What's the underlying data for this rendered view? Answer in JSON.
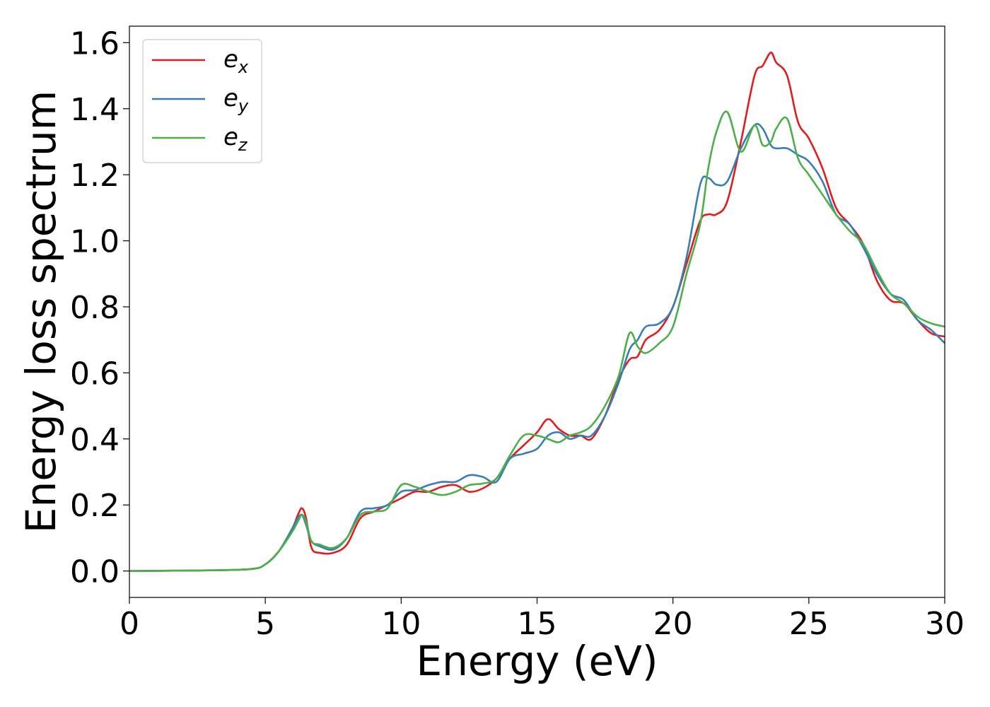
{
  "chart_data": {
    "type": "line",
    "xlabel": "Energy (eV)",
    "ylabel": "Energy loss spectrum",
    "xlim": [
      0,
      30
    ],
    "ylim": [
      -0.08,
      1.65
    ],
    "x_ticks": [
      "0",
      "5",
      "10",
      "15",
      "20",
      "25",
      "30"
    ],
    "y_ticks": [
      "0.0",
      "0.2",
      "0.4",
      "0.6",
      "0.8",
      "1.0",
      "1.2",
      "1.4",
      "1.6"
    ],
    "grid": false,
    "legend_position": "top-left",
    "series": [
      {
        "name": "e",
        "name_subscript": "x",
        "color": "#e41a1c",
        "x": [
          0,
          3,
          4.5,
          5,
          5.5,
          6,
          6.2,
          6.35,
          6.5,
          6.7,
          7,
          7.5,
          8,
          8.5,
          9,
          9.5,
          10,
          10.5,
          11,
          11.5,
          12,
          12.5,
          13,
          13.5,
          14,
          14.5,
          15,
          15.4,
          15.8,
          16.2,
          16.6,
          17,
          17.5,
          18,
          18.4,
          18.7,
          19,
          19.5,
          20,
          20.5,
          21,
          21.3,
          21.6,
          22,
          22.5,
          23,
          23.3,
          23.6,
          23.8,
          24.2,
          24.6,
          25,
          25.5,
          26,
          26.5,
          27,
          27.5,
          28,
          28.5,
          29,
          29.5,
          30
        ],
        "values": [
          0,
          0.002,
          0.006,
          0.02,
          0.06,
          0.13,
          0.17,
          0.19,
          0.16,
          0.07,
          0.055,
          0.055,
          0.08,
          0.16,
          0.18,
          0.2,
          0.22,
          0.24,
          0.24,
          0.255,
          0.26,
          0.24,
          0.25,
          0.28,
          0.34,
          0.38,
          0.42,
          0.46,
          0.43,
          0.41,
          0.41,
          0.4,
          0.47,
          0.58,
          0.64,
          0.65,
          0.7,
          0.73,
          0.8,
          0.93,
          1.06,
          1.08,
          1.08,
          1.12,
          1.3,
          1.5,
          1.53,
          1.57,
          1.54,
          1.5,
          1.36,
          1.31,
          1.22,
          1.1,
          1.05,
          0.99,
          0.88,
          0.82,
          0.81,
          0.76,
          0.72,
          0.71
        ]
      },
      {
        "name": "e",
        "name_subscript": "y",
        "color": "#377eb8",
        "x": [
          0,
          3,
          4.5,
          5,
          5.5,
          6,
          6.2,
          6.35,
          6.5,
          6.7,
          7,
          7.5,
          8,
          8.5,
          9,
          9.5,
          10,
          10.5,
          11,
          11.5,
          12,
          12.5,
          13,
          13.5,
          14,
          14.5,
          15,
          15.4,
          15.8,
          16.2,
          16.6,
          17,
          17.5,
          18,
          18.4,
          18.7,
          19,
          19.5,
          20,
          20.5,
          21,
          21.3,
          21.6,
          22,
          22.5,
          23,
          23.3,
          23.6,
          23.8,
          24.2,
          24.6,
          25,
          25.5,
          26,
          26.5,
          27,
          27.5,
          28,
          28.5,
          29,
          29.5,
          30
        ],
        "values": [
          0,
          0.002,
          0.006,
          0.02,
          0.06,
          0.13,
          0.16,
          0.17,
          0.14,
          0.09,
          0.075,
          0.065,
          0.1,
          0.18,
          0.19,
          0.2,
          0.24,
          0.245,
          0.26,
          0.27,
          0.27,
          0.29,
          0.285,
          0.27,
          0.34,
          0.355,
          0.37,
          0.41,
          0.42,
          0.4,
          0.41,
          0.41,
          0.47,
          0.57,
          0.67,
          0.7,
          0.74,
          0.75,
          0.8,
          0.95,
          1.17,
          1.19,
          1.17,
          1.18,
          1.28,
          1.35,
          1.34,
          1.29,
          1.28,
          1.28,
          1.26,
          1.24,
          1.18,
          1.08,
          1.05,
          0.98,
          0.9,
          0.84,
          0.82,
          0.76,
          0.73,
          0.69
        ]
      },
      {
        "name": "e",
        "name_subscript": "z",
        "color": "#4daf4a",
        "x": [
          0,
          3,
          4.5,
          5,
          5.5,
          6,
          6.2,
          6.35,
          6.5,
          6.7,
          7,
          7.5,
          8,
          8.5,
          9,
          9.5,
          10,
          10.5,
          11,
          11.5,
          12,
          12.5,
          13,
          13.5,
          14,
          14.5,
          15,
          15.4,
          15.8,
          16.2,
          16.6,
          17,
          17.5,
          18,
          18.4,
          18.7,
          19,
          19.5,
          20,
          20.5,
          21,
          21.3,
          21.6,
          22,
          22.5,
          23,
          23.3,
          23.6,
          23.8,
          24.2,
          24.6,
          25,
          25.5,
          26,
          26.5,
          27,
          27.5,
          28,
          28.5,
          29,
          29.5,
          30
        ],
        "values": [
          0,
          0.002,
          0.006,
          0.02,
          0.06,
          0.12,
          0.15,
          0.17,
          0.15,
          0.09,
          0.08,
          0.07,
          0.1,
          0.17,
          0.18,
          0.19,
          0.26,
          0.255,
          0.24,
          0.23,
          0.24,
          0.26,
          0.265,
          0.28,
          0.35,
          0.41,
          0.41,
          0.4,
          0.39,
          0.41,
          0.42,
          0.44,
          0.5,
          0.59,
          0.72,
          0.68,
          0.66,
          0.69,
          0.74,
          0.9,
          1.05,
          1.22,
          1.33,
          1.39,
          1.27,
          1.35,
          1.29,
          1.3,
          1.34,
          1.37,
          1.25,
          1.2,
          1.14,
          1.08,
          1.03,
          0.99,
          0.91,
          0.84,
          0.81,
          0.77,
          0.75,
          0.74
        ]
      }
    ]
  }
}
